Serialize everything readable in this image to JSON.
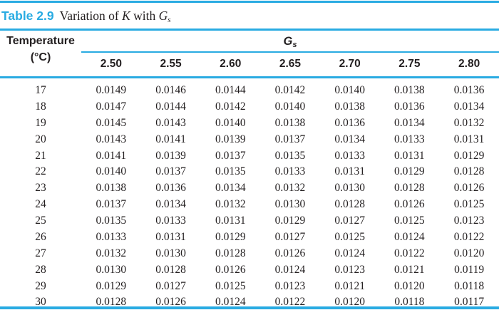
{
  "colors": {
    "accent_cyan": "#29abe2",
    "text_ink": "#231f20"
  },
  "title": {
    "label": "Table 2.9",
    "caption_prefix": "Variation of ",
    "caption_var_1": "K",
    "caption_middle": " with ",
    "caption_var_2": "G",
    "caption_var_2_sub": "s"
  },
  "table": {
    "row_header_line1": "Temperature",
    "row_header_line2": "(°C)",
    "col_group_label": "G",
    "col_group_label_sub": "s",
    "columns": [
      "2.50",
      "2.55",
      "2.60",
      "2.65",
      "2.70",
      "2.75",
      "2.80"
    ],
    "rows": [
      {
        "temp": "17",
        "values": [
          "0.0149",
          "0.0146",
          "0.0144",
          "0.0142",
          "0.0140",
          "0.0138",
          "0.0136"
        ]
      },
      {
        "temp": "18",
        "values": [
          "0.0147",
          "0.0144",
          "0.0142",
          "0.0140",
          "0.0138",
          "0.0136",
          "0.0134"
        ]
      },
      {
        "temp": "19",
        "values": [
          "0.0145",
          "0.0143",
          "0.0140",
          "0.0138",
          "0.0136",
          "0.0134",
          "0.0132"
        ]
      },
      {
        "temp": "20",
        "values": [
          "0.0143",
          "0.0141",
          "0.0139",
          "0.0137",
          "0.0134",
          "0.0133",
          "0.0131"
        ]
      },
      {
        "temp": "21",
        "values": [
          "0.0141",
          "0.0139",
          "0.0137",
          "0.0135",
          "0.0133",
          "0.0131",
          "0.0129"
        ]
      },
      {
        "temp": "22",
        "values": [
          "0.0140",
          "0.0137",
          "0.0135",
          "0.0133",
          "0.0131",
          "0.0129",
          "0.0128"
        ]
      },
      {
        "temp": "23",
        "values": [
          "0.0138",
          "0.0136",
          "0.0134",
          "0.0132",
          "0.0130",
          "0.0128",
          "0.0126"
        ]
      },
      {
        "temp": "24",
        "values": [
          "0.0137",
          "0.0134",
          "0.0132",
          "0.0130",
          "0.0128",
          "0.0126",
          "0.0125"
        ]
      },
      {
        "temp": "25",
        "values": [
          "0.0135",
          "0.0133",
          "0.0131",
          "0.0129",
          "0.0127",
          "0.0125",
          "0.0123"
        ]
      },
      {
        "temp": "26",
        "values": [
          "0.0133",
          "0.0131",
          "0.0129",
          "0.0127",
          "0.0125",
          "0.0124",
          "0.0122"
        ]
      },
      {
        "temp": "27",
        "values": [
          "0.0132",
          "0.0130",
          "0.0128",
          "0.0126",
          "0.0124",
          "0.0122",
          "0.0120"
        ]
      },
      {
        "temp": "28",
        "values": [
          "0.0130",
          "0.0128",
          "0.0126",
          "0.0124",
          "0.0123",
          "0.0121",
          "0.0119"
        ]
      },
      {
        "temp": "29",
        "values": [
          "0.0129",
          "0.0127",
          "0.0125",
          "0.0123",
          "0.0121",
          "0.0120",
          "0.0118"
        ]
      },
      {
        "temp": "30",
        "values": [
          "0.0128",
          "0.0126",
          "0.0124",
          "0.0122",
          "0.0120",
          "0.0118",
          "0.0117"
        ]
      }
    ]
  }
}
